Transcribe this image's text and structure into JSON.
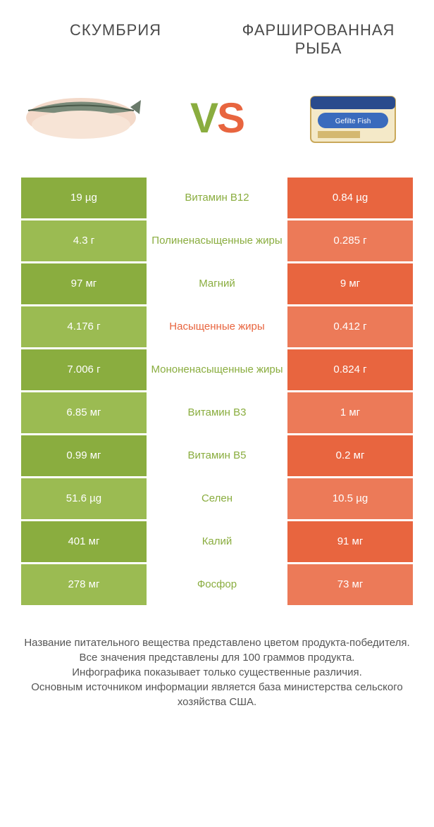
{
  "colors": {
    "left_a": "#8aad3f",
    "left_b": "#9bbb52",
    "right_a": "#e8653f",
    "right_b": "#ec7a58",
    "left_text": "#8aad3f",
    "right_text": "#e8653f",
    "background": "#ffffff",
    "body_text": "#4a4a4a"
  },
  "header": {
    "left_title": "СКУМБРИЯ",
    "right_title": "ФАРШИРОВАННАЯ РЫБА",
    "vs_v": "V",
    "vs_s": "S"
  },
  "products": {
    "left_icon": "mackerel",
    "right_icon": "gefilte-fish-package"
  },
  "rows": [
    {
      "left": "19 µg",
      "mid": "Витамин B12",
      "right": "0.84 µg",
      "winner": "left"
    },
    {
      "left": "4.3 г",
      "mid": "Полиненасыщенные жиры",
      "right": "0.285 г",
      "winner": "left"
    },
    {
      "left": "97 мг",
      "mid": "Магний",
      "right": "9 мг",
      "winner": "left"
    },
    {
      "left": "4.176 г",
      "mid": "Насыщенные жиры",
      "right": "0.412 г",
      "winner": "right"
    },
    {
      "left": "7.006 г",
      "mid": "Мононенасыщенные жиры",
      "right": "0.824 г",
      "winner": "left"
    },
    {
      "left": "6.85 мг",
      "mid": "Витамин B3",
      "right": "1 мг",
      "winner": "left"
    },
    {
      "left": "0.99 мг",
      "mid": "Витамин B5",
      "right": "0.2 мг",
      "winner": "left"
    },
    {
      "left": "51.6 µg",
      "mid": "Селен",
      "right": "10.5 µg",
      "winner": "left"
    },
    {
      "left": "401 мг",
      "mid": "Калий",
      "right": "91 мг",
      "winner": "left"
    },
    {
      "left": "278 мг",
      "mid": "Фосфор",
      "right": "73 мг",
      "winner": "left"
    }
  ],
  "footer": {
    "line1": "Название питательного вещества представлено цветом продукта-победителя.",
    "line2": "Все значения представлены для 100 граммов продукта.",
    "line3": "Инфографика показывает только существенные различия.",
    "line4": "Основным источником информации является база министерства сельского хозяйства США."
  },
  "typography": {
    "title_fontsize": 22,
    "cell_fontsize": 15,
    "vs_fontsize": 60,
    "footer_fontsize": 15
  }
}
